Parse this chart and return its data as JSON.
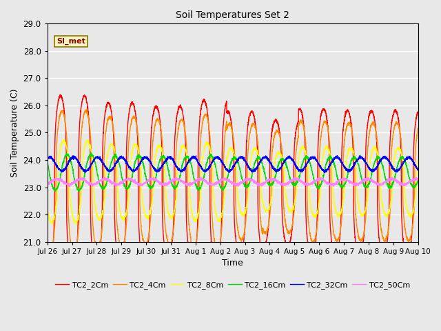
{
  "title": "Soil Temperatures Set 2",
  "xlabel": "Time",
  "ylabel": "Soil Temperature (C)",
  "ylim": [
    21.0,
    29.0
  ],
  "yticks": [
    21.0,
    22.0,
    23.0,
    24.0,
    25.0,
    26.0,
    27.0,
    28.0,
    29.0
  ],
  "xtick_labels": [
    "Jul 26",
    "Jul 27",
    "Jul 28",
    "Jul 29",
    "Jul 30",
    "Jul 31",
    "Aug 1",
    "Aug 2",
    "Aug 3",
    "Aug 4",
    "Aug 5",
    "Aug 6",
    "Aug 7",
    "Aug 8",
    "Aug 9",
    "Aug 10"
  ],
  "series_order": [
    "TC2_2Cm",
    "TC2_4Cm",
    "TC2_8Cm",
    "TC2_16Cm",
    "TC2_32Cm",
    "TC2_50Cm"
  ],
  "series": {
    "TC2_2Cm": {
      "color": "#ff0000",
      "amplitude": 3.2,
      "base": 23.15,
      "phase": 0.0,
      "sharpness": 3.0
    },
    "TC2_4Cm": {
      "color": "#ff8c00",
      "amplitude": 2.6,
      "base": 23.2,
      "phase": 0.06,
      "sharpness": 2.5
    },
    "TC2_8Cm": {
      "color": "#ffff00",
      "amplitude": 1.5,
      "base": 23.2,
      "phase": 0.13,
      "sharpness": 1.8
    },
    "TC2_16Cm": {
      "color": "#00dd00",
      "amplitude": 0.65,
      "base": 23.55,
      "phase": 0.28,
      "sharpness": 1.2
    },
    "TC2_32Cm": {
      "color": "#0000ff",
      "amplitude": 0.25,
      "base": 23.85,
      "phase": 0.55,
      "sharpness": 1.0
    },
    "TC2_50Cm": {
      "color": "#ff80ff",
      "amplitude": 0.1,
      "base": 23.2,
      "phase": 0.85,
      "sharpness": 1.0
    }
  },
  "annotation_text": "SI_met",
  "plot_bg_color": "#e8e8e8",
  "fig_bg_color": "#e8e8e8",
  "n_points": 3600,
  "days": 15.5,
  "legend_ncol": 6,
  "figsize": [
    6.4,
    4.8
  ],
  "dpi": 100
}
